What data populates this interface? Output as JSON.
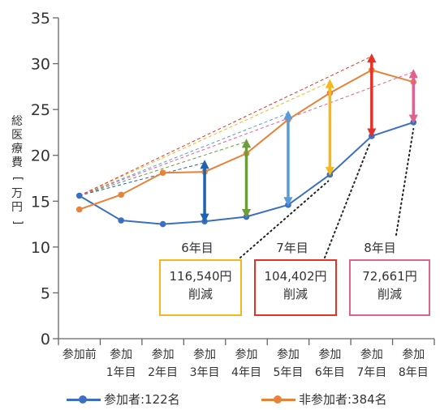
{
  "chart_data": {
    "type": "line",
    "ylim": [
      0,
      35
    ],
    "yticks": [
      0,
      5,
      10,
      15,
      20,
      25,
      30,
      35
    ],
    "ylabel": {
      "chars": [
        "総",
        "医",
        "療",
        "費"
      ],
      "bracket_open": "[",
      "unit": "万円",
      "bracket_close": "]"
    },
    "categories": [
      [
        "参加前"
      ],
      [
        "参加",
        "1年目"
      ],
      [
        "参加",
        "2年目"
      ],
      [
        "参加",
        "3年目"
      ],
      [
        "参加",
        "4年目"
      ],
      [
        "参加",
        "5年目"
      ],
      [
        "参加",
        "6年目"
      ],
      [
        "参加",
        "7年目"
      ],
      [
        "参加",
        "8年目"
      ]
    ],
    "series": [
      {
        "name": "参加者:122名",
        "color": "#3b6fc4",
        "values": [
          15.6,
          12.9,
          12.5,
          12.8,
          13.3,
          14.6,
          17.9,
          22.1,
          23.6
        ]
      },
      {
        "name": "非参加者:384名",
        "color": "#e8823a",
        "values": [
          14.1,
          15.7,
          18.1,
          18.2,
          20.2,
          23.9,
          26.8,
          29.3,
          28.0
        ]
      }
    ],
    "trend_lines": [
      {
        "to": 3,
        "value": 19.2,
        "color": "#1e63b0"
      },
      {
        "to": 4,
        "value": 21.5,
        "color": "#6d9c3a"
      },
      {
        "to": 5,
        "value": 24.6,
        "color": "#5b9bd5"
      },
      {
        "to": 6,
        "value": 28.0,
        "color": "#f5b81c"
      },
      {
        "to": 7,
        "value": 30.8,
        "color": "#e53228"
      },
      {
        "to": 8,
        "value": 29.1,
        "color": "#e0628f"
      }
    ],
    "arrows": [
      {
        "index": 3,
        "from": 19.2,
        "to": 12.8,
        "color": "#1e63b0"
      },
      {
        "index": 4,
        "from": 21.5,
        "to": 13.3,
        "color": "#6d9c3a"
      },
      {
        "index": 5,
        "from": 24.6,
        "to": 14.6,
        "color": "#5b9bd5"
      },
      {
        "index": 6,
        "from": 28.0,
        "to": 17.9,
        "color": "#f5b81c"
      },
      {
        "index": 7,
        "from": 30.8,
        "to": 22.1,
        "color": "#e53228"
      },
      {
        "index": 8,
        "from": 29.1,
        "to": 23.6,
        "color": "#e0628f"
      }
    ],
    "annotations": [
      {
        "label": "6年目",
        "amount": "116,540円",
        "text": "削減",
        "border": "#f5b81c",
        "index": 6
      },
      {
        "label": "7年目",
        "amount": "104,402円",
        "text": "削減",
        "border": "#e53228",
        "index": 7
      },
      {
        "label": "8年目",
        "amount": "72,661円",
        "text": "削減",
        "border": "#e0628f",
        "index": 8
      }
    ],
    "grid": false,
    "legend_position": "bottom"
  }
}
